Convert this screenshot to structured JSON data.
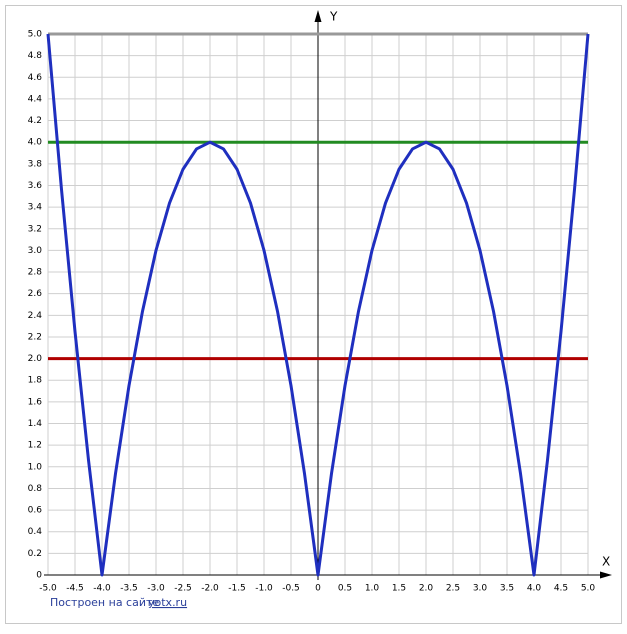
{
  "chart_data": {
    "type": "line",
    "axis_labels": {
      "x": "X",
      "y": "Y"
    },
    "xlim": [
      -5,
      5
    ],
    "ylim": [
      0,
      5
    ],
    "xticks": [
      {
        "value": -5,
        "label": "-5.0"
      },
      -4.5,
      {
        "value": -4,
        "label": "-4.0"
      },
      -3.5,
      {
        "value": -3,
        "label": "-3.0"
      },
      -2.5,
      {
        "value": -2,
        "label": "-2.0"
      },
      -1.5,
      {
        "value": -1,
        "label": "-1.0"
      },
      -0.5,
      0,
      0.5,
      {
        "value": 1,
        "label": "1.0"
      },
      1.5,
      {
        "value": 2,
        "label": "2.0"
      },
      2.5,
      {
        "value": 3,
        "label": "3.0"
      },
      3.5,
      {
        "value": 4,
        "label": "4.0"
      },
      4.5,
      {
        "value": 5,
        "label": "5.0"
      }
    ],
    "yticks": [
      0,
      0.2,
      0.4,
      0.6,
      0.8,
      {
        "value": 1,
        "label": "1.0"
      },
      1.2,
      1.4,
      1.6,
      1.8,
      {
        "value": 2,
        "label": "2.0"
      },
      2.2,
      2.4,
      2.6,
      2.8,
      {
        "value": 3,
        "label": "3.0"
      },
      3.2,
      3.4,
      3.6,
      3.8,
      {
        "value": 4,
        "label": "4.0"
      },
      4.2,
      4.4,
      4.6,
      4.8,
      {
        "value": 5,
        "label": "5.0"
      }
    ],
    "grid": true,
    "series": [
      {
        "color": "#999999",
        "x": [
          -5,
          5
        ],
        "values": [
          5,
          5
        ]
      },
      {
        "color": "#228b22",
        "x": [
          -5,
          5
        ],
        "values": [
          4,
          4
        ]
      },
      {
        "color": "#b00000",
        "x": [
          -5,
          5
        ],
        "values": [
          2,
          2
        ]
      },
      {
        "color": "#1f2fbf",
        "x": [
          -5,
          -4.75,
          -4.5,
          -4.25,
          -4,
          -3.75,
          -3.5,
          -3.25,
          -3,
          -2.75,
          -2.5,
          -2.25,
          -2,
          -1.75,
          -1.5,
          -1.25,
          -1,
          -0.75,
          -0.5,
          -0.25,
          0,
          0.25,
          0.5,
          0.75,
          1,
          1.25,
          1.5,
          1.75,
          2,
          2.25,
          2.5,
          2.75,
          3,
          3.25,
          3.5,
          3.75,
          4,
          4.25,
          4.5,
          4.75,
          5
        ],
        "values": [
          5,
          3.5625,
          2.25,
          1.0625,
          0,
          0.9375,
          1.75,
          2.4375,
          3,
          3.4375,
          3.75,
          3.9375,
          4,
          3.9375,
          3.75,
          3.4375,
          3,
          2.4375,
          1.75,
          0.9375,
          0,
          0.9375,
          1.75,
          2.4375,
          3,
          3.4375,
          3.75,
          3.9375,
          4,
          3.9375,
          3.75,
          3.4375,
          3,
          2.4375,
          1.75,
          0.9375,
          0,
          1.0625,
          2.25,
          3.5625,
          5
        ]
      }
    ]
  },
  "footer": {
    "text": "Построен на сайте",
    "link": "yotx.ru"
  }
}
